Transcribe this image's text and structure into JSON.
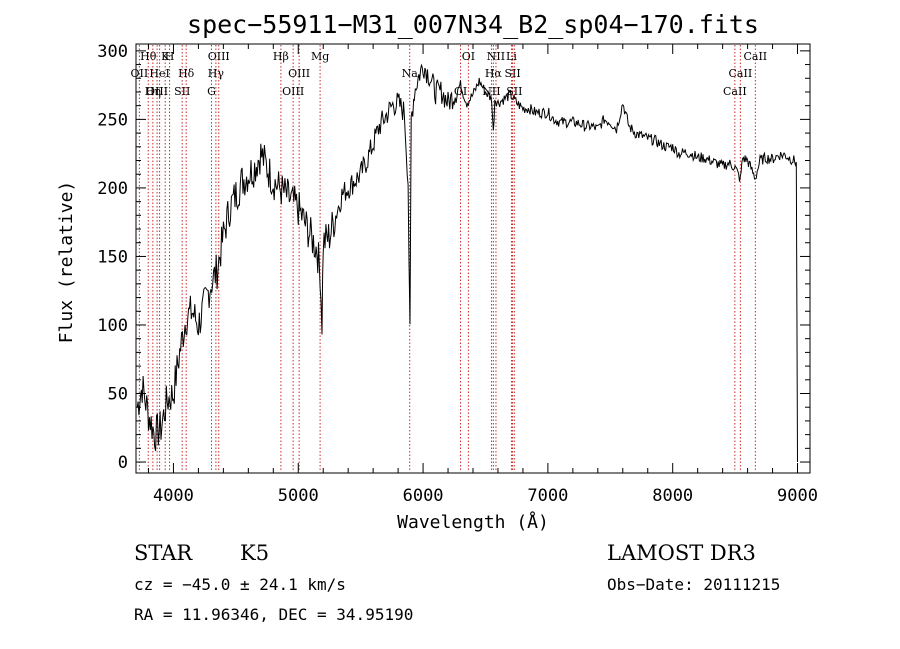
{
  "chart_data": {
    "type": "line",
    "title": "spec−55911−M31_007N34_B2_sp04−170.fits",
    "xlabel": "Wavelength (Å)",
    "ylabel": "Flux (relative)",
    "xlim": [
      3700,
      9100
    ],
    "ylim": [
      -8,
      305
    ],
    "x_ticks": [
      4000,
      5000,
      6000,
      7000,
      8000,
      9000
    ],
    "y_ticks": [
      0,
      50,
      100,
      150,
      200,
      250,
      300
    ],
    "x_tick_labels": [
      "4000",
      "5000",
      "6000",
      "7000",
      "8000",
      "9000"
    ],
    "y_tick_labels": [
      "0",
      "50",
      "100",
      "150",
      "200",
      "250",
      "300"
    ],
    "series": [
      {
        "color": "#000000",
        "x": [
          3710,
          3750,
          3800,
          3850,
          3900,
          3950,
          4000,
          4050,
          4100,
          4150,
          4200,
          4250,
          4300,
          4350,
          4400,
          4450,
          4500,
          4550,
          4600,
          4650,
          4700,
          4750,
          4800,
          4850,
          4900,
          4950,
          5000,
          5050,
          5100,
          5150,
          5175,
          5190,
          5200,
          5250,
          5300,
          5350,
          5400,
          5450,
          5500,
          5550,
          5600,
          5650,
          5700,
          5750,
          5800,
          5850,
          5880,
          5895,
          5905,
          5930,
          5960,
          6000,
          6050,
          6100,
          6150,
          6200,
          6250,
          6300,
          6350,
          6400,
          6450,
          6500,
          6550,
          6563,
          6575,
          6600,
          6650,
          6700,
          6750,
          6800,
          6850,
          6900,
          6950,
          7000,
          7050,
          7100,
          7150,
          7200,
          7250,
          7300,
          7350,
          7400,
          7450,
          7500,
          7550,
          7600,
          7650,
          7700,
          7750,
          7800,
          7850,
          7900,
          7950,
          8000,
          8050,
          8100,
          8150,
          8200,
          8250,
          8300,
          8350,
          8400,
          8450,
          8500,
          8542,
          8560,
          8600,
          8662,
          8700,
          8750,
          8800,
          8850,
          8900,
          8950,
          8990,
          9000
        ],
        "y": [
          40,
          55,
          35,
          20,
          25,
          45,
          50,
          80,
          105,
          110,
          100,
          115,
          130,
          140,
          165,
          185,
          195,
          205,
          210,
          215,
          225,
          215,
          205,
          200,
          195,
          190,
          185,
          175,
          165,
          155,
          140,
          102,
          160,
          165,
          180,
          195,
          200,
          205,
          210,
          220,
          232,
          245,
          252,
          260,
          262,
          255,
          205,
          92,
          250,
          270,
          280,
          290,
          282,
          270,
          270,
          262,
          268,
          275,
          262,
          268,
          278,
          270,
          265,
          240,
          265,
          262,
          265,
          268,
          262,
          258,
          258,
          255,
          255,
          255,
          250,
          248,
          248,
          248,
          247,
          245,
          245,
          243,
          250,
          248,
          243,
          262,
          245,
          240,
          238,
          236,
          235,
          232,
          230,
          230,
          225,
          226,
          225,
          222,
          222,
          220,
          218,
          216,
          218,
          215,
          206,
          222,
          220,
          207,
          220,
          222,
          221,
          224,
          224,
          221,
          219,
          0
        ]
      }
    ],
    "line_markers": [
      {
        "label": "Hθ",
        "x": 3798
      },
      {
        "label": "OII",
        "x": 3727
      },
      {
        "label": "OIII",
        "x": 3869
      },
      {
        "label": "K",
        "x": 3934
      },
      {
        "label": "HeI",
        "x": 3889
      },
      {
        "label": "Hη",
        "x": 3835
      },
      {
        "label": "H",
        "x": 3969
      },
      {
        "label": "Hδ",
        "x": 4102
      },
      {
        "label": "SII",
        "x": 4070
      },
      {
        "label": "OIII",
        "x": 4363
      },
      {
        "label": "Hγ",
        "x": 4340
      },
      {
        "label": "G",
        "x": 4305
      },
      {
        "label": "Hβ",
        "x": 4861
      },
      {
        "label": "OIII",
        "x": 5007
      },
      {
        "label": "OIII",
        "x": 4959
      },
      {
        "label": "Mg",
        "x": 5175
      },
      {
        "label": "Na",
        "x": 5893
      },
      {
        "label": "OI",
        "x": 6300
      },
      {
        "label": "OI",
        "x": 6363
      },
      {
        "label": "Hα",
        "x": 6563
      },
      {
        "label": "NII",
        "x": 6548
      },
      {
        "label": "NII",
        "x": 6584
      },
      {
        "label": "SII",
        "x": 6717
      },
      {
        "label": "SII",
        "x": 6731
      },
      {
        "label": "Li",
        "x": 6708
      },
      {
        "label": "CaII",
        "x": 8542
      },
      {
        "label": "CaII",
        "x": 8498
      },
      {
        "label": "CaII",
        "x": 8662
      }
    ],
    "grid": false,
    "legend": "none"
  },
  "info": {
    "object_class": "STAR",
    "subclass": "K5",
    "survey": "LAMOST DR3",
    "redshift_line": "cz = −45.0 ± 24.1 km/s",
    "obs_date_line": "Obs−Date: 20111215",
    "coords_line": "RA =  11.96346, DEC =  34.95190"
  }
}
